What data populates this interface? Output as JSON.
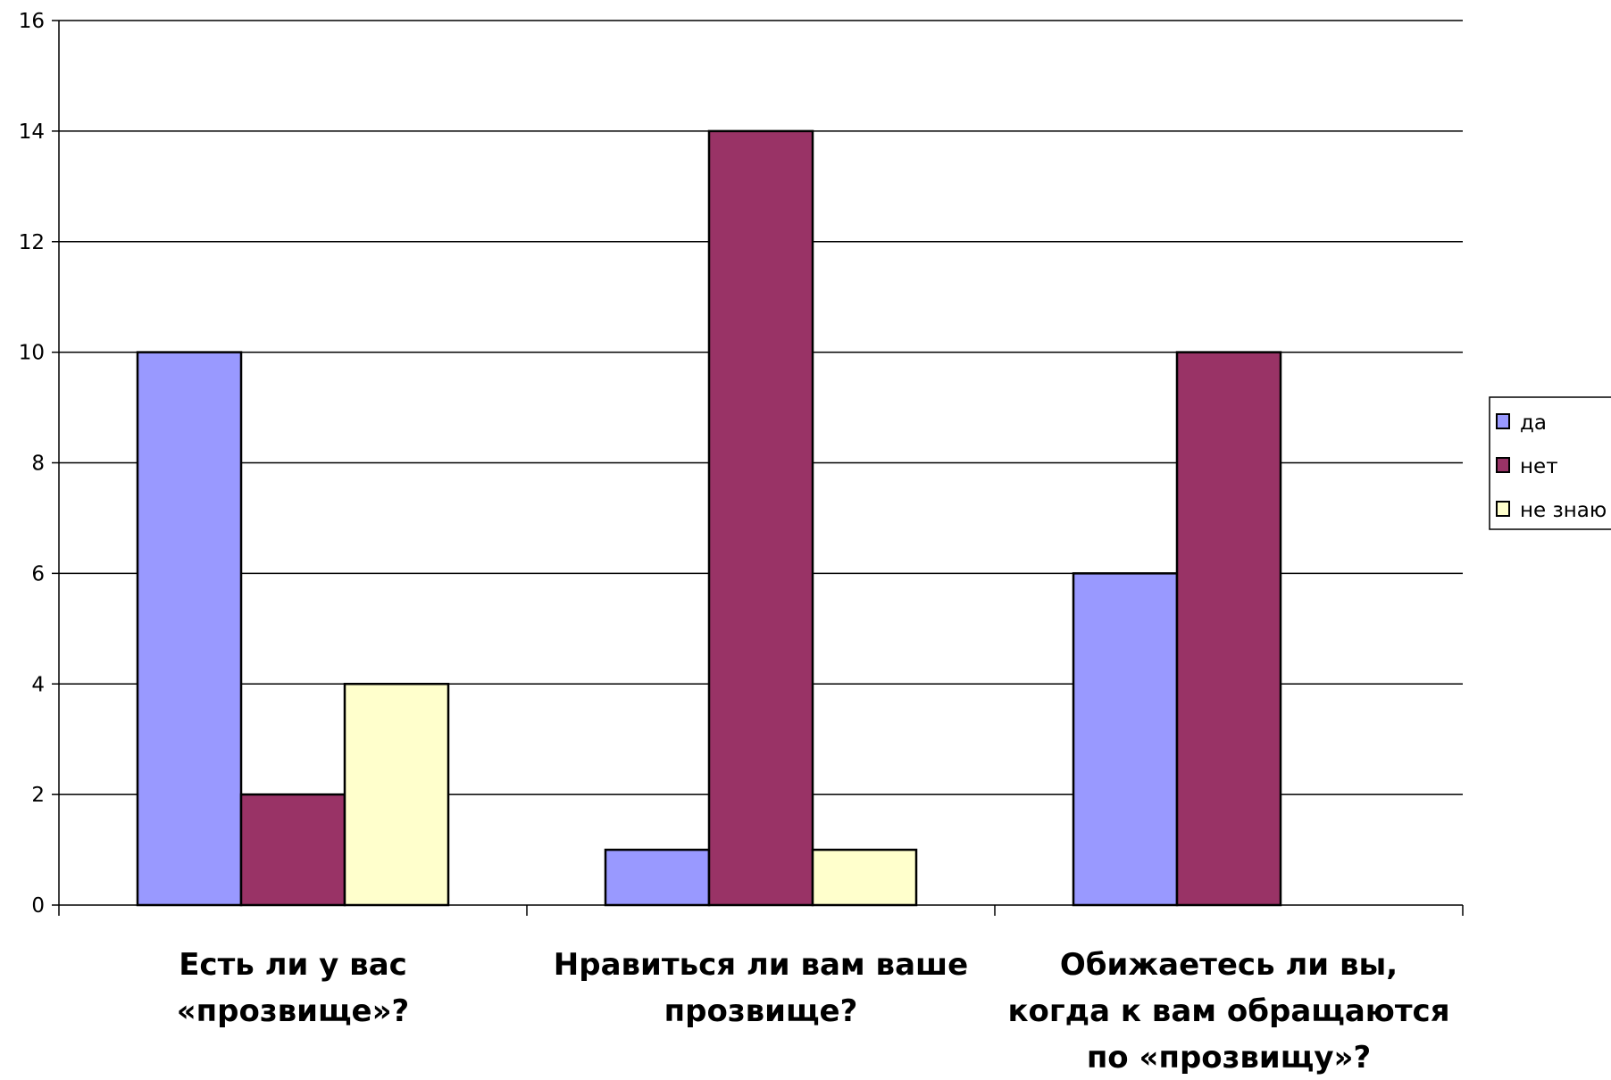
{
  "chart_data": {
    "type": "bar",
    "categories": [
      [
        "Есть ли у вас",
        "«прозвище»?"
      ],
      [
        "Нравиться ли вам ваше",
        "прозвище?"
      ],
      [
        "Обижаетесь ли вы,",
        "когда к вам обращаются",
        "по «прозвищу»?"
      ]
    ],
    "series": [
      {
        "name": "да",
        "values": [
          10,
          1,
          6
        ],
        "color": "#9999ff"
      },
      {
        "name": "нет",
        "values": [
          2,
          14,
          10
        ],
        "color": "#993366"
      },
      {
        "name": "не знаю",
        "values": [
          4,
          1,
          0
        ],
        "color": "#ffffcc"
      }
    ],
    "y_ticks": [
      "0",
      "2",
      "4",
      "6",
      "8",
      "10",
      "12",
      "14",
      "16"
    ],
    "ylim": [
      0,
      16
    ],
    "grid": true,
    "legend_position": "right",
    "title": "",
    "xlabel": "",
    "ylabel": ""
  }
}
